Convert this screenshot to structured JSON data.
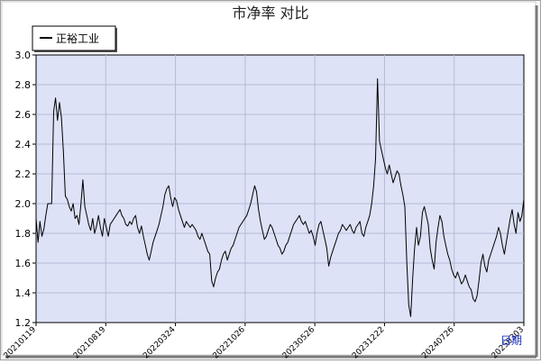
{
  "chart_data": {
    "type": "line",
    "title": "市净率  对比",
    "xlabel": "",
    "ylabel": "",
    "x_axis_label": "日期",
    "ylim": [
      1.2,
      3.0
    ],
    "grid": true,
    "legend_position": "top-left",
    "y_ticks": [
      "1.2",
      "1.4",
      "1.6",
      "1.8",
      "2.0",
      "2.2",
      "2.4",
      "2.6",
      "2.8",
      "3.0"
    ],
    "x_ticks": [
      "20210119",
      "20210819",
      "20220324",
      "20221026",
      "20230526",
      "20231222",
      "20240726",
      "20250303"
    ],
    "series": [
      {
        "name": "正裕工业",
        "color": "#000000",
        "points": [
          [
            0,
            1.9
          ],
          [
            1,
            1.74
          ],
          [
            2,
            1.88
          ],
          [
            3,
            1.78
          ],
          [
            4,
            1.83
          ],
          [
            5,
            1.92
          ],
          [
            6,
            2.0
          ],
          [
            7,
            2.0
          ],
          [
            8,
            2.0
          ],
          [
            9,
            2.62
          ],
          [
            10,
            2.71
          ],
          [
            11,
            2.56
          ],
          [
            12,
            2.68
          ],
          [
            13,
            2.58
          ],
          [
            14,
            2.35
          ],
          [
            15,
            2.05
          ],
          [
            16,
            2.03
          ],
          [
            17,
            1.98
          ],
          [
            18,
            1.95
          ],
          [
            19,
            2.0
          ],
          [
            20,
            1.9
          ],
          [
            21,
            1.92
          ],
          [
            22,
            1.86
          ],
          [
            23,
            2.0
          ],
          [
            24,
            2.16
          ],
          [
            25,
            1.98
          ],
          [
            26,
            1.92
          ],
          [
            27,
            1.86
          ],
          [
            28,
            1.82
          ],
          [
            29,
            1.9
          ],
          [
            30,
            1.8
          ],
          [
            31,
            1.85
          ],
          [
            32,
            1.92
          ],
          [
            33,
            1.84
          ],
          [
            34,
            1.78
          ],
          [
            35,
            1.9
          ],
          [
            36,
            1.84
          ],
          [
            37,
            1.78
          ],
          [
            38,
            1.86
          ],
          [
            39,
            1.88
          ],
          [
            40,
            1.9
          ],
          [
            41,
            1.92
          ],
          [
            42,
            1.94
          ],
          [
            43,
            1.96
          ],
          [
            44,
            1.92
          ],
          [
            45,
            1.9
          ],
          [
            46,
            1.86
          ],
          [
            47,
            1.85
          ],
          [
            48,
            1.88
          ],
          [
            49,
            1.86
          ],
          [
            50,
            1.9
          ],
          [
            51,
            1.92
          ],
          [
            52,
            1.84
          ],
          [
            53,
            1.8
          ],
          [
            54,
            1.85
          ],
          [
            55,
            1.78
          ],
          [
            56,
            1.72
          ],
          [
            57,
            1.66
          ],
          [
            58,
            1.62
          ],
          [
            59,
            1.68
          ],
          [
            60,
            1.74
          ],
          [
            61,
            1.78
          ],
          [
            62,
            1.82
          ],
          [
            63,
            1.86
          ],
          [
            64,
            1.92
          ],
          [
            65,
            1.98
          ],
          [
            66,
            2.06
          ],
          [
            67,
            2.1
          ],
          [
            68,
            2.12
          ],
          [
            69,
            2.04
          ],
          [
            70,
            1.98
          ],
          [
            71,
            2.04
          ],
          [
            72,
            2.02
          ],
          [
            73,
            1.96
          ],
          [
            74,
            1.92
          ],
          [
            75,
            1.88
          ],
          [
            76,
            1.84
          ],
          [
            77,
            1.88
          ],
          [
            78,
            1.86
          ],
          [
            79,
            1.84
          ],
          [
            80,
            1.86
          ],
          [
            81,
            1.84
          ],
          [
            82,
            1.82
          ],
          [
            83,
            1.78
          ],
          [
            84,
            1.76
          ],
          [
            85,
            1.8
          ],
          [
            86,
            1.76
          ],
          [
            87,
            1.72
          ],
          [
            88,
            1.68
          ],
          [
            89,
            1.66
          ],
          [
            90,
            1.48
          ],
          [
            91,
            1.44
          ],
          [
            92,
            1.5
          ],
          [
            93,
            1.54
          ],
          [
            94,
            1.56
          ],
          [
            95,
            1.62
          ],
          [
            96,
            1.66
          ],
          [
            97,
            1.68
          ],
          [
            98,
            1.62
          ],
          [
            99,
            1.66
          ],
          [
            100,
            1.7
          ],
          [
            101,
            1.72
          ],
          [
            102,
            1.76
          ],
          [
            103,
            1.8
          ],
          [
            104,
            1.84
          ],
          [
            105,
            1.86
          ],
          [
            106,
            1.88
          ],
          [
            107,
            1.9
          ],
          [
            108,
            1.92
          ],
          [
            109,
            1.96
          ],
          [
            110,
            2.0
          ],
          [
            111,
            2.06
          ],
          [
            112,
            2.12
          ],
          [
            113,
            2.08
          ],
          [
            114,
            1.96
          ],
          [
            115,
            1.88
          ],
          [
            116,
            1.82
          ],
          [
            117,
            1.76
          ],
          [
            118,
            1.78
          ],
          [
            119,
            1.82
          ],
          [
            120,
            1.86
          ],
          [
            121,
            1.84
          ],
          [
            122,
            1.8
          ],
          [
            123,
            1.76
          ],
          [
            124,
            1.72
          ],
          [
            125,
            1.7
          ],
          [
            126,
            1.66
          ],
          [
            127,
            1.68
          ],
          [
            128,
            1.72
          ],
          [
            129,
            1.74
          ],
          [
            130,
            1.78
          ],
          [
            131,
            1.82
          ],
          [
            132,
            1.86
          ],
          [
            133,
            1.88
          ],
          [
            134,
            1.9
          ],
          [
            135,
            1.92
          ],
          [
            136,
            1.88
          ],
          [
            137,
            1.86
          ],
          [
            138,
            1.88
          ],
          [
            139,
            1.84
          ],
          [
            140,
            1.8
          ],
          [
            141,
            1.82
          ],
          [
            142,
            1.78
          ],
          [
            143,
            1.72
          ],
          [
            144,
            1.8
          ],
          [
            145,
            1.86
          ],
          [
            146,
            1.88
          ],
          [
            147,
            1.82
          ],
          [
            148,
            1.76
          ],
          [
            149,
            1.7
          ],
          [
            150,
            1.58
          ],
          [
            151,
            1.64
          ],
          [
            152,
            1.68
          ],
          [
            153,
            1.72
          ],
          [
            154,
            1.76
          ],
          [
            155,
            1.8
          ],
          [
            156,
            1.82
          ],
          [
            157,
            1.86
          ],
          [
            158,
            1.84
          ],
          [
            159,
            1.82
          ],
          [
            160,
            1.84
          ],
          [
            161,
            1.86
          ],
          [
            162,
            1.82
          ],
          [
            163,
            1.8
          ],
          [
            164,
            1.84
          ],
          [
            165,
            1.86
          ],
          [
            166,
            1.88
          ],
          [
            167,
            1.8
          ],
          [
            168,
            1.78
          ],
          [
            169,
            1.84
          ],
          [
            170,
            1.88
          ],
          [
            171,
            1.92
          ],
          [
            172,
            2.0
          ],
          [
            173,
            2.12
          ],
          [
            174,
            2.3
          ],
          [
            175,
            2.84
          ],
          [
            176,
            2.42
          ],
          [
            177,
            2.36
          ],
          [
            178,
            2.3
          ],
          [
            179,
            2.24
          ],
          [
            180,
            2.2
          ],
          [
            181,
            2.26
          ],
          [
            182,
            2.2
          ],
          [
            183,
            2.14
          ],
          [
            184,
            2.18
          ],
          [
            185,
            2.22
          ],
          [
            186,
            2.2
          ],
          [
            187,
            2.12
          ],
          [
            188,
            2.06
          ],
          [
            189,
            1.98
          ],
          [
            190,
            1.6
          ],
          [
            191,
            1.32
          ],
          [
            192,
            1.24
          ],
          [
            193,
            1.5
          ],
          [
            194,
            1.7
          ],
          [
            195,
            1.84
          ],
          [
            196,
            1.72
          ],
          [
            197,
            1.78
          ],
          [
            198,
            1.94
          ],
          [
            199,
            1.98
          ],
          [
            200,
            1.92
          ],
          [
            201,
            1.86
          ],
          [
            202,
            1.7
          ],
          [
            203,
            1.62
          ],
          [
            204,
            1.56
          ],
          [
            205,
            1.74
          ],
          [
            206,
            1.84
          ],
          [
            207,
            1.92
          ],
          [
            208,
            1.88
          ],
          [
            209,
            1.78
          ],
          [
            210,
            1.72
          ],
          [
            211,
            1.66
          ],
          [
            212,
            1.62
          ],
          [
            213,
            1.56
          ],
          [
            214,
            1.52
          ],
          [
            215,
            1.5
          ],
          [
            216,
            1.54
          ],
          [
            217,
            1.5
          ],
          [
            218,
            1.46
          ],
          [
            219,
            1.48
          ],
          [
            220,
            1.52
          ],
          [
            221,
            1.48
          ],
          [
            222,
            1.44
          ],
          [
            223,
            1.42
          ],
          [
            224,
            1.36
          ],
          [
            225,
            1.34
          ],
          [
            226,
            1.38
          ],
          [
            227,
            1.48
          ],
          [
            228,
            1.6
          ],
          [
            229,
            1.66
          ],
          [
            230,
            1.58
          ],
          [
            231,
            1.54
          ],
          [
            232,
            1.62
          ],
          [
            233,
            1.66
          ],
          [
            234,
            1.7
          ],
          [
            235,
            1.74
          ],
          [
            236,
            1.78
          ],
          [
            237,
            1.84
          ],
          [
            238,
            1.8
          ],
          [
            239,
            1.72
          ],
          [
            240,
            1.66
          ],
          [
            241,
            1.74
          ],
          [
            242,
            1.82
          ],
          [
            243,
            1.9
          ],
          [
            244,
            1.96
          ],
          [
            245,
            1.86
          ],
          [
            246,
            1.8
          ],
          [
            247,
            1.94
          ],
          [
            248,
            1.88
          ],
          [
            249,
            1.92
          ],
          [
            250,
            2.03
          ]
        ]
      }
    ]
  }
}
